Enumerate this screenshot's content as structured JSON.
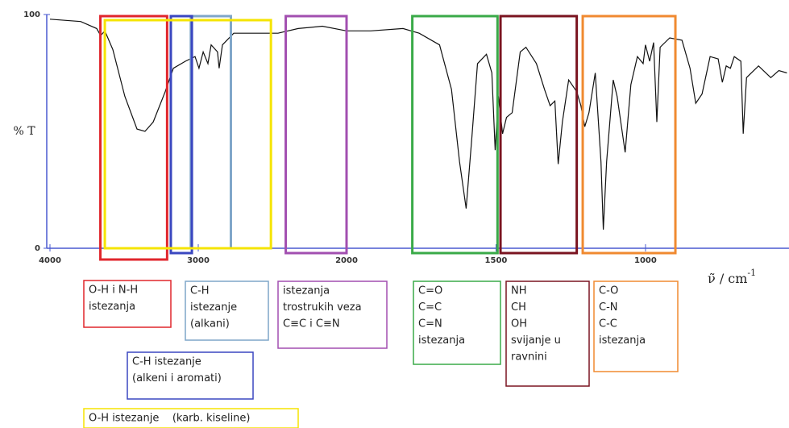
{
  "chart_data": {
    "type": "line",
    "ylabel": "% T",
    "xlabel": {
      "text": "ν̃ / cm",
      "superscript": "-1"
    },
    "xlim": [
      4000,
      520
    ],
    "ylim": [
      0,
      100
    ],
    "x_scale_change": 2000,
    "xticks": [
      4000,
      3000,
      2000,
      1500,
      1000
    ],
    "yticks": [
      0,
      100
    ],
    "series": [
      {
        "color": "#111111",
        "x": [
          4000,
          3793,
          3685,
          3658,
          3630,
          3576,
          3495,
          3413,
          3359,
          3304,
          3223,
          3168,
          3087,
          3022,
          2995,
          2967,
          2935,
          2913,
          2870,
          2859,
          2837,
          2761,
          2598,
          2462,
          2326,
          2163,
          2000,
          1919,
          1811,
          1757,
          1689,
          1649,
          1622,
          1600,
          1581,
          1562,
          1532,
          1514,
          1503,
          1492,
          1478,
          1465,
          1446,
          1419,
          1400,
          1365,
          1338,
          1319,
          1303,
          1292,
          1278,
          1257,
          1230,
          1216,
          1203,
          1189,
          1168,
          1149,
          1141,
          1130,
          1108,
          1095,
          1068,
          1049,
          1027,
          1008,
          1000,
          986,
          973,
          962,
          951,
          919,
          878,
          851,
          832,
          811,
          784,
          757,
          743,
          730,
          716,
          703,
          681,
          673,
          662,
          622,
          581,
          554,
          527
        ],
        "values": [
          98,
          97,
          94,
          91,
          93,
          85,
          65,
          51,
          50,
          54,
          67,
          77,
          80,
          82,
          77,
          84,
          79,
          87,
          84,
          77,
          87,
          92,
          92,
          92,
          94,
          95,
          93,
          93,
          94,
          92,
          87,
          68,
          37,
          17,
          47,
          79,
          83,
          75,
          42,
          65,
          49,
          56,
          58,
          84,
          86,
          79,
          68,
          61,
          63,
          36,
          54,
          72,
          67,
          61,
          52,
          58,
          75,
          37,
          8,
          37,
          72,
          65,
          41,
          70,
          82,
          79,
          87,
          80,
          88,
          54,
          86,
          90,
          89,
          77,
          62,
          66,
          82,
          81,
          71,
          78,
          77,
          82,
          80,
          49,
          73,
          78,
          73,
          76,
          75
        ]
      }
    ],
    "regions": [
      {
        "x_range": [
          3660,
          3210
        ],
        "color": "#e0262c",
        "label": [
          "O-H i N-H",
          "istezanja"
        ]
      },
      {
        "x_range": [
          3050,
          2780
        ],
        "color": "#7fa6c9",
        "label": [
          "C-H",
          "istezanje",
          "(alkani)"
        ]
      },
      {
        "x_range": [
          2410,
          2000
        ],
        "color": "#a24fb0",
        "label": [
          "istezanja",
          "trostrukih veza",
          "C≡C i C≡N"
        ]
      },
      {
        "x_range": [
          1780,
          1495
        ],
        "color": "#3aaa48",
        "label": [
          "C=O",
          "C=C",
          "C=N",
          "istezanja"
        ]
      },
      {
        "x_range": [
          1485,
          1230
        ],
        "color": "#7a1420",
        "label": [
          "NH",
          "CH",
          "OH",
          "svijanje u",
          "ravnini"
        ]
      },
      {
        "x_range": [
          1210,
          900
        ],
        "color": "#f08a30",
        "label": [
          "C-O",
          "C-N",
          "C-C",
          "istezanja"
        ]
      },
      {
        "x_range": [
          3185,
          3043
        ],
        "color": "#3a47c0",
        "label": [
          "C-H istezanje",
          "(alkeni i aromati)"
        ]
      },
      {
        "x_range": [
          3630,
          2510
        ],
        "color": "#f5e400",
        "label": [
          "O-H istezanje    (karb. kiseline)"
        ]
      }
    ]
  }
}
